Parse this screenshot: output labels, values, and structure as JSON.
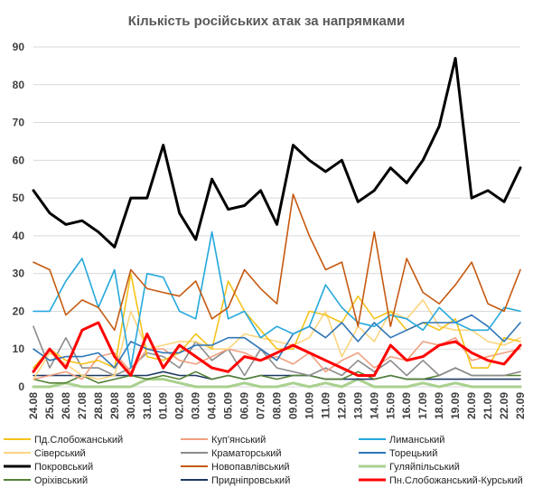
{
  "chart_data": {
    "type": "line",
    "title": "Кількість російських атак за напрямками",
    "xlabel": "",
    "ylabel": "",
    "ylim": [
      0,
      90
    ],
    "yticks": [
      0,
      10,
      20,
      30,
      40,
      50,
      60,
      70,
      80,
      90
    ],
    "grid": true,
    "legend_position": "bottom",
    "categories": [
      "24.08",
      "25.08",
      "26.08",
      "27.08",
      "28.08",
      "29.08",
      "30.08",
      "31.08",
      "01.09",
      "02.09",
      "03.09",
      "04.09",
      "05.09",
      "06.09",
      "07.09",
      "08.09",
      "09.09",
      "10.09",
      "11.09",
      "12.09",
      "13.09",
      "14.09",
      "15.09",
      "16.09",
      "17.09",
      "18.09",
      "19.09",
      "20.09",
      "21.09",
      "22.09",
      "23.09"
    ],
    "series": [
      {
        "name": "Пд.Слобожанський",
        "color": "#f5c21b",
        "values": [
          5,
          10,
          7,
          6,
          7,
          5,
          30,
          8,
          7,
          9,
          14,
          10,
          28,
          20,
          15,
          10,
          10,
          20,
          19,
          17,
          24,
          18,
          20,
          15,
          17,
          15,
          18,
          5,
          5,
          13,
          12
        ]
      },
      {
        "name": "Куп'янський",
        "color": "#f0a080",
        "values": [
          2,
          3,
          4,
          2,
          8,
          9,
          4,
          10,
          10,
          7,
          6,
          8,
          10,
          9,
          7,
          8,
          6,
          9,
          4,
          7,
          9,
          5,
          8,
          7,
          12,
          11,
          13,
          7,
          8,
          9,
          10
        ]
      },
      {
        "name": "Лиманський",
        "color": "#25a8dc",
        "values": [
          20,
          20,
          28,
          34,
          21,
          31,
          5,
          30,
          29,
          20,
          18,
          41,
          18,
          20,
          13,
          16,
          14,
          16,
          27,
          21,
          17,
          16,
          19,
          18,
          15,
          21,
          17,
          15,
          15,
          21,
          20
        ]
      },
      {
        "name": "Сіверський",
        "color": "#fcd57e",
        "values": [
          2,
          9,
          6,
          3,
          2,
          3,
          20,
          10,
          11,
          12,
          12,
          10,
          10,
          14,
          13,
          12,
          11,
          13,
          20,
          8,
          16,
          12,
          20,
          18,
          23,
          16,
          15,
          15,
          12,
          11,
          13
        ]
      },
      {
        "name": "Краматорський",
        "color": "#8c8c8c",
        "values": [
          16,
          5,
          13,
          5,
          5,
          3,
          5,
          9,
          8,
          5,
          12,
          7,
          10,
          3,
          10,
          5,
          4,
          3,
          5,
          3,
          7,
          4,
          7,
          3,
          7,
          3,
          5,
          3,
          3,
          3,
          4
        ]
      },
      {
        "name": "Торецький",
        "color": "#2e75b6",
        "values": [
          10,
          7,
          8,
          8,
          9,
          5,
          12,
          10,
          9,
          9,
          11,
          11,
          13,
          13,
          10,
          7,
          14,
          16,
          13,
          17,
          12,
          17,
          13,
          15,
          17,
          17,
          17,
          19,
          16,
          12,
          17
        ]
      },
      {
        "name": "Покровський",
        "color": "#000000",
        "values": [
          52,
          46,
          43,
          44,
          41,
          37,
          50,
          50,
          64,
          46,
          39,
          55,
          47,
          48,
          52,
          43,
          64,
          60,
          57,
          60,
          49,
          52,
          58,
          54,
          60,
          69,
          87,
          50,
          52,
          49,
          58
        ]
      },
      {
        "name": "Новопавлівський",
        "color": "#c55a11",
        "values": [
          33,
          31,
          19,
          23,
          21,
          15,
          31,
          26,
          25,
          24,
          28,
          18,
          21,
          31,
          26,
          22,
          51,
          40,
          31,
          33,
          16,
          41,
          16,
          34,
          25,
          22,
          27,
          33,
          22,
          20,
          31
        ]
      },
      {
        "name": "Гуляйпільський",
        "color": "#a9d18e",
        "values": [
          0,
          0,
          1,
          0,
          0,
          0,
          0,
          2,
          2,
          1,
          0,
          0,
          0,
          1,
          0,
          0,
          1,
          0,
          1,
          0,
          2,
          0,
          0,
          0,
          1,
          0,
          1,
          0,
          0,
          0,
          0
        ]
      },
      {
        "name": "Оріхівський",
        "color": "#548235",
        "values": [
          2,
          1,
          1,
          3,
          1,
          2,
          3,
          2,
          3,
          2,
          4,
          2,
          3,
          2,
          3,
          2,
          3,
          3,
          2,
          2,
          4,
          2,
          3,
          2,
          2,
          3,
          5,
          3,
          3,
          3,
          3
        ]
      },
      {
        "name": "Придніпровський",
        "color": "#1f3864",
        "values": [
          3,
          3,
          3,
          3,
          3,
          3,
          3,
          3,
          4,
          3,
          3,
          2,
          3,
          2,
          3,
          3,
          3,
          3,
          2,
          2,
          2,
          2,
          3,
          2,
          2,
          2,
          2,
          2,
          2,
          2,
          2
        ]
      },
      {
        "name": "Пн.Слобожанський-Курський",
        "color": "#ff0000",
        "values": [
          4,
          10,
          5,
          15,
          17,
          8,
          3,
          14,
          5,
          11,
          8,
          5,
          4,
          8,
          7,
          9,
          11,
          9,
          7,
          5,
          3,
          3,
          11,
          7,
          8,
          11,
          12,
          9,
          7,
          6,
          11
        ]
      }
    ]
  }
}
